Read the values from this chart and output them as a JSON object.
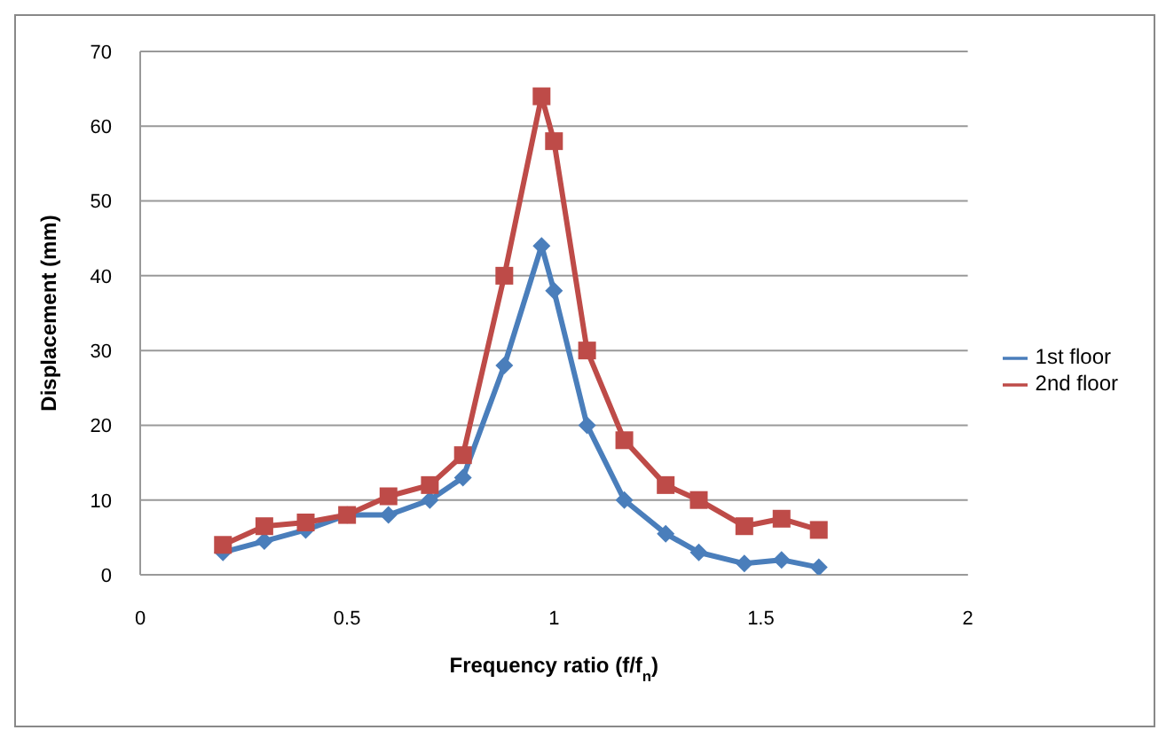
{
  "chart_data": {
    "type": "line",
    "xlabel": "Frequency ratio (f/f$_{n}$)",
    "ylabel": "Displacement  (mm)",
    "x": [
      0.2,
      0.3,
      0.4,
      0.5,
      0.6,
      0.7,
      0.78,
      0.88,
      0.97,
      1.0,
      1.08,
      1.17,
      1.27,
      1.35,
      1.46,
      1.55,
      1.64
    ],
    "series": [
      {
        "name": "1st floor",
        "color": "#4a7ebb",
        "marker": "diamond",
        "values": [
          3,
          4.5,
          6,
          8,
          8,
          10,
          13,
          28,
          44,
          38,
          20,
          10,
          5.5,
          3,
          1.5,
          2,
          1
        ]
      },
      {
        "name": "2nd floor",
        "color": "#be4b48",
        "marker": "square",
        "values": [
          4,
          6.5,
          7,
          8,
          10.5,
          12,
          16,
          40,
          64,
          58,
          30,
          18,
          12,
          10,
          6.5,
          7.5,
          6
        ]
      }
    ],
    "xlim": [
      0,
      2
    ],
    "xticks": [
      0,
      0.5,
      1,
      1.5,
      2
    ],
    "ylim": [
      0,
      70
    ],
    "yticks": [
      0,
      10,
      20,
      30,
      40,
      50,
      60,
      70
    ],
    "grid": "y",
    "legend": "right"
  }
}
